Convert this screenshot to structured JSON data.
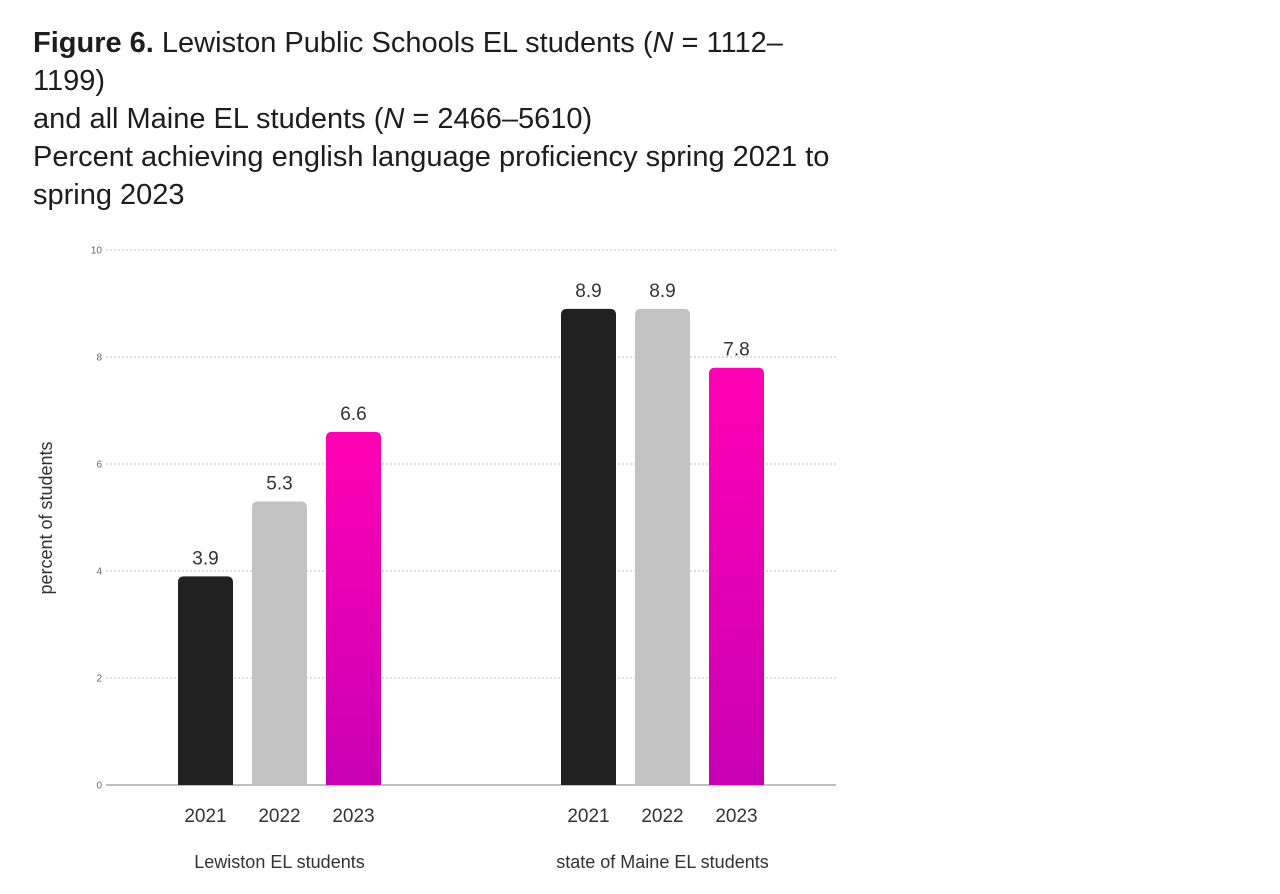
{
  "title": {
    "figure_label": "Figure 6.",
    "line1_text": "Lewiston Public Schools EL students (",
    "line1_n": "N",
    "line1_range": " = 1112–1199)",
    "line2_text": "and all Maine EL students (",
    "line2_n": "N",
    "line2_range": " = 2466–5610)",
    "subtitle": "Percent achieving english language proficiency spring 2021 to spring 2023"
  },
  "chart_data": {
    "type": "bar",
    "title": "Percent achieving english language proficiency spring 2021 to spring 2023",
    "ylabel": "percent of students",
    "xlabel": "",
    "ylim": [
      0,
      10
    ],
    "yticks": [
      0,
      2,
      4,
      6,
      8,
      10
    ],
    "grid": true,
    "groups": [
      {
        "name": "Lewiston EL students",
        "categories": [
          "2021",
          "2022",
          "2023"
        ],
        "values": [
          3.9,
          5.3,
          6.6
        ],
        "labels": [
          "3.9",
          "5.3",
          "6.6"
        ]
      },
      {
        "name": "state of Maine EL students",
        "categories": [
          "2021",
          "2022",
          "2023"
        ],
        "values": [
          8.9,
          8.9,
          7.8
        ],
        "labels": [
          "8.9",
          "8.9",
          "7.8"
        ]
      }
    ],
    "colors": {
      "2021": "#212121",
      "2022": "#c2c2c2",
      "2023_top": "#ff00b4",
      "2023_bottom": "#c800b4"
    }
  }
}
